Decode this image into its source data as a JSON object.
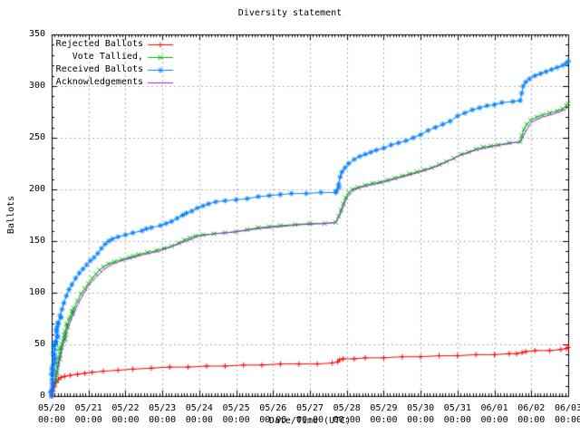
{
  "chart_data": {
    "type": "line",
    "title": "Diversity statement",
    "xlabel": "Date/Time (UTC)",
    "ylabel": "Ballots",
    "xlim": [
      0,
      14
    ],
    "ylim": [
      0,
      350
    ],
    "grid": true,
    "legend_position": "top-left-inside",
    "colors": {
      "background": "#ffffff",
      "axis": "#000000",
      "grid": "#b0b0b0"
    },
    "y_ticks": [
      0,
      50,
      100,
      150,
      200,
      250,
      300,
      350
    ],
    "x_ticks": [
      {
        "pos": 0,
        "date": "05/20",
        "time": "00:00"
      },
      {
        "pos": 1,
        "date": "05/21",
        "time": "00:00"
      },
      {
        "pos": 2,
        "date": "05/22",
        "time": "00:00"
      },
      {
        "pos": 3,
        "date": "05/23",
        "time": "00:00"
      },
      {
        "pos": 4,
        "date": "05/24",
        "time": "00:00"
      },
      {
        "pos": 5,
        "date": "05/25",
        "time": "00:00"
      },
      {
        "pos": 6,
        "date": "05/26",
        "time": "00:00"
      },
      {
        "pos": 7,
        "date": "05/27",
        "time": "00:00"
      },
      {
        "pos": 8,
        "date": "05/28",
        "time": "00:00"
      },
      {
        "pos": 9,
        "date": "05/29",
        "time": "00:00"
      },
      {
        "pos": 10,
        "date": "05/30",
        "time": "00:00"
      },
      {
        "pos": 11,
        "date": "05/31",
        "time": "00:00"
      },
      {
        "pos": 12,
        "date": "06/01",
        "time": "00:00"
      },
      {
        "pos": 13,
        "date": "06/02",
        "time": "00:00"
      },
      {
        "pos": 14,
        "date": "06/03",
        "time": "00:00"
      }
    ],
    "series": [
      {
        "name": "Rejected Ballots",
        "color": "#ff0000",
        "marker": "plus",
        "points": [
          [
            0,
            0
          ],
          [
            0.03,
            5
          ],
          [
            0.07,
            9
          ],
          [
            0.12,
            13
          ],
          [
            0.18,
            16
          ],
          [
            0.25,
            18
          ],
          [
            0.35,
            19
          ],
          [
            0.5,
            20
          ],
          [
            0.7,
            21
          ],
          [
            0.9,
            22
          ],
          [
            1.1,
            23
          ],
          [
            1.4,
            24
          ],
          [
            1.8,
            25
          ],
          [
            2.2,
            26
          ],
          [
            2.7,
            27
          ],
          [
            3.2,
            28
          ],
          [
            3.7,
            28
          ],
          [
            4.2,
            29
          ],
          [
            4.7,
            29
          ],
          [
            5.2,
            30
          ],
          [
            5.7,
            30
          ],
          [
            6.2,
            31
          ],
          [
            6.7,
            31
          ],
          [
            7.2,
            31
          ],
          [
            7.6,
            32
          ],
          [
            7.75,
            33
          ],
          [
            7.8,
            35
          ],
          [
            7.9,
            36
          ],
          [
            8.2,
            36
          ],
          [
            8.5,
            37
          ],
          [
            9.0,
            37
          ],
          [
            9.5,
            38
          ],
          [
            10.0,
            38
          ],
          [
            10.5,
            39
          ],
          [
            11.0,
            39
          ],
          [
            11.5,
            40
          ],
          [
            12.0,
            40
          ],
          [
            12.4,
            41
          ],
          [
            12.6,
            41
          ],
          [
            12.75,
            42
          ],
          [
            12.85,
            43
          ],
          [
            13.1,
            44
          ],
          [
            13.5,
            44
          ],
          [
            13.8,
            45
          ],
          [
            13.95,
            46
          ],
          [
            14.0,
            47
          ]
        ]
      },
      {
        "name": "Vote Tallied,",
        "color": "#00b400",
        "marker": "cross",
        "points": [
          [
            0,
            0
          ],
          [
            0.04,
            6
          ],
          [
            0.08,
            12
          ],
          [
            0.12,
            20
          ],
          [
            0.17,
            30
          ],
          [
            0.22,
            40
          ],
          [
            0.28,
            50
          ],
          [
            0.34,
            59
          ],
          [
            0.42,
            68
          ],
          [
            0.5,
            76
          ],
          [
            0.6,
            85
          ],
          [
            0.7,
            92
          ],
          [
            0.8,
            99
          ],
          [
            0.9,
            104
          ],
          [
            1.0,
            109
          ],
          [
            1.1,
            114
          ],
          [
            1.2,
            118
          ],
          [
            1.3,
            122
          ],
          [
            1.4,
            125
          ],
          [
            1.55,
            128
          ],
          [
            1.7,
            130
          ],
          [
            1.9,
            132
          ],
          [
            2.1,
            134
          ],
          [
            2.35,
            137
          ],
          [
            2.6,
            139
          ],
          [
            2.85,
            141
          ],
          [
            3.05,
            143
          ],
          [
            3.25,
            145
          ],
          [
            3.45,
            148
          ],
          [
            3.6,
            151
          ],
          [
            3.75,
            153
          ],
          [
            3.9,
            155
          ],
          [
            4.1,
            156
          ],
          [
            4.4,
            157
          ],
          [
            4.7,
            158
          ],
          [
            5.0,
            159
          ],
          [
            5.3,
            161
          ],
          [
            5.6,
            163
          ],
          [
            5.9,
            164
          ],
          [
            6.2,
            165
          ],
          [
            6.6,
            166
          ],
          [
            7.0,
            167
          ],
          [
            7.4,
            167
          ],
          [
            7.7,
            168
          ],
          [
            7.78,
            174
          ],
          [
            7.84,
            180
          ],
          [
            7.9,
            186
          ],
          [
            7.97,
            192
          ],
          [
            8.05,
            197
          ],
          [
            8.15,
            200
          ],
          [
            8.3,
            202
          ],
          [
            8.5,
            204
          ],
          [
            8.7,
            206
          ],
          [
            8.9,
            207
          ],
          [
            9.1,
            209
          ],
          [
            9.3,
            211
          ],
          [
            9.5,
            213
          ],
          [
            9.7,
            215
          ],
          [
            9.9,
            217
          ],
          [
            10.1,
            219
          ],
          [
            10.3,
            221
          ],
          [
            10.5,
            224
          ],
          [
            10.7,
            227
          ],
          [
            10.9,
            230
          ],
          [
            11.1,
            234
          ],
          [
            11.3,
            236
          ],
          [
            11.5,
            239
          ],
          [
            11.7,
            241
          ],
          [
            11.9,
            242
          ],
          [
            12.1,
            243
          ],
          [
            12.4,
            245
          ],
          [
            12.7,
            246
          ],
          [
            12.74,
            252
          ],
          [
            12.8,
            258
          ],
          [
            12.88,
            263
          ],
          [
            12.98,
            267
          ],
          [
            13.15,
            270
          ],
          [
            13.3,
            272
          ],
          [
            13.5,
            274
          ],
          [
            13.7,
            276
          ],
          [
            13.85,
            278
          ],
          [
            13.95,
            281
          ],
          [
            14.0,
            283
          ]
        ]
      },
      {
        "name": "Received Ballots",
        "color": "#0080ff",
        "marker": "star",
        "points": [
          [
            0,
            0
          ],
          [
            0.02,
            12
          ],
          [
            0.04,
            25
          ],
          [
            0.07,
            40
          ],
          [
            0.1,
            52
          ],
          [
            0.14,
            62
          ],
          [
            0.18,
            70
          ],
          [
            0.23,
            78
          ],
          [
            0.28,
            84
          ],
          [
            0.33,
            90
          ],
          [
            0.4,
            97
          ],
          [
            0.47,
            103
          ],
          [
            0.55,
            108
          ],
          [
            0.65,
            114
          ],
          [
            0.75,
            119
          ],
          [
            0.85,
            123
          ],
          [
            0.95,
            127
          ],
          [
            1.05,
            131
          ],
          [
            1.15,
            134
          ],
          [
            1.25,
            138
          ],
          [
            1.35,
            143
          ],
          [
            1.45,
            147
          ],
          [
            1.55,
            150
          ],
          [
            1.65,
            152
          ],
          [
            1.8,
            154
          ],
          [
            2.0,
            156
          ],
          [
            2.2,
            158
          ],
          [
            2.45,
            160
          ],
          [
            2.7,
            163
          ],
          [
            2.95,
            165
          ],
          [
            3.1,
            167
          ],
          [
            3.25,
            169
          ],
          [
            3.4,
            172
          ],
          [
            3.55,
            175
          ],
          [
            3.65,
            177
          ],
          [
            3.8,
            179
          ],
          [
            3.95,
            182
          ],
          [
            4.1,
            184
          ],
          [
            4.25,
            186
          ],
          [
            4.45,
            188
          ],
          [
            4.7,
            189
          ],
          [
            5.0,
            190
          ],
          [
            5.3,
            191
          ],
          [
            5.6,
            193
          ],
          [
            5.9,
            194
          ],
          [
            6.2,
            195
          ],
          [
            6.5,
            196
          ],
          [
            6.9,
            196
          ],
          [
            7.3,
            197
          ],
          [
            7.7,
            197
          ],
          [
            7.78,
            205
          ],
          [
            7.82,
            212
          ],
          [
            7.87,
            217
          ],
          [
            7.95,
            221
          ],
          [
            8.05,
            225
          ],
          [
            8.2,
            229
          ],
          [
            8.35,
            232
          ],
          [
            8.5,
            234
          ],
          [
            8.65,
            236
          ],
          [
            8.8,
            238
          ],
          [
            9.0,
            240
          ],
          [
            9.2,
            243
          ],
          [
            9.4,
            245
          ],
          [
            9.6,
            247
          ],
          [
            9.8,
            250
          ],
          [
            10.0,
            253
          ],
          [
            10.2,
            257
          ],
          [
            10.4,
            260
          ],
          [
            10.6,
            263
          ],
          [
            10.8,
            266
          ],
          [
            11.0,
            271
          ],
          [
            11.2,
            274
          ],
          [
            11.4,
            277
          ],
          [
            11.6,
            279
          ],
          [
            11.8,
            281
          ],
          [
            12.0,
            282
          ],
          [
            12.2,
            284
          ],
          [
            12.5,
            285
          ],
          [
            12.7,
            286
          ],
          [
            12.74,
            293
          ],
          [
            12.78,
            300
          ],
          [
            12.85,
            304
          ],
          [
            12.95,
            307
          ],
          [
            13.1,
            310
          ],
          [
            13.25,
            312
          ],
          [
            13.4,
            314
          ],
          [
            13.55,
            316
          ],
          [
            13.7,
            318
          ],
          [
            13.85,
            320
          ],
          [
            13.95,
            322
          ],
          [
            14.0,
            324
          ]
        ]
      },
      {
        "name": "Acknowledgements",
        "color": "#a020f0",
        "marker": "none",
        "points": [
          [
            0,
            0
          ],
          [
            0.05,
            8
          ],
          [
            0.1,
            16
          ],
          [
            0.2,
            32
          ],
          [
            0.3,
            48
          ],
          [
            0.4,
            62
          ],
          [
            0.55,
            76
          ],
          [
            0.7,
            88
          ],
          [
            0.85,
            98
          ],
          [
            1.0,
            107
          ],
          [
            1.2,
            115
          ],
          [
            1.4,
            122
          ],
          [
            1.6,
            127
          ],
          [
            1.9,
            131
          ],
          [
            2.2,
            134
          ],
          [
            2.5,
            137
          ],
          [
            2.9,
            140
          ],
          [
            3.2,
            144
          ],
          [
            3.5,
            148
          ],
          [
            3.8,
            152
          ],
          [
            4.0,
            155
          ],
          [
            4.4,
            157
          ],
          [
            5.0,
            159
          ],
          [
            5.6,
            162
          ],
          [
            6.2,
            164
          ],
          [
            6.8,
            166
          ],
          [
            7.4,
            167
          ],
          [
            7.7,
            168
          ],
          [
            7.85,
            178
          ],
          [
            8.0,
            192
          ],
          [
            8.2,
            200
          ],
          [
            8.5,
            203
          ],
          [
            9.0,
            207
          ],
          [
            9.5,
            212
          ],
          [
            10.0,
            217
          ],
          [
            10.5,
            223
          ],
          [
            11.0,
            232
          ],
          [
            11.5,
            238
          ],
          [
            12.0,
            242
          ],
          [
            12.5,
            245
          ],
          [
            12.7,
            246
          ],
          [
            12.85,
            256
          ],
          [
            13.0,
            265
          ],
          [
            13.3,
            270
          ],
          [
            13.6,
            273
          ],
          [
            13.9,
            277
          ],
          [
            14.0,
            280
          ]
        ]
      }
    ]
  }
}
